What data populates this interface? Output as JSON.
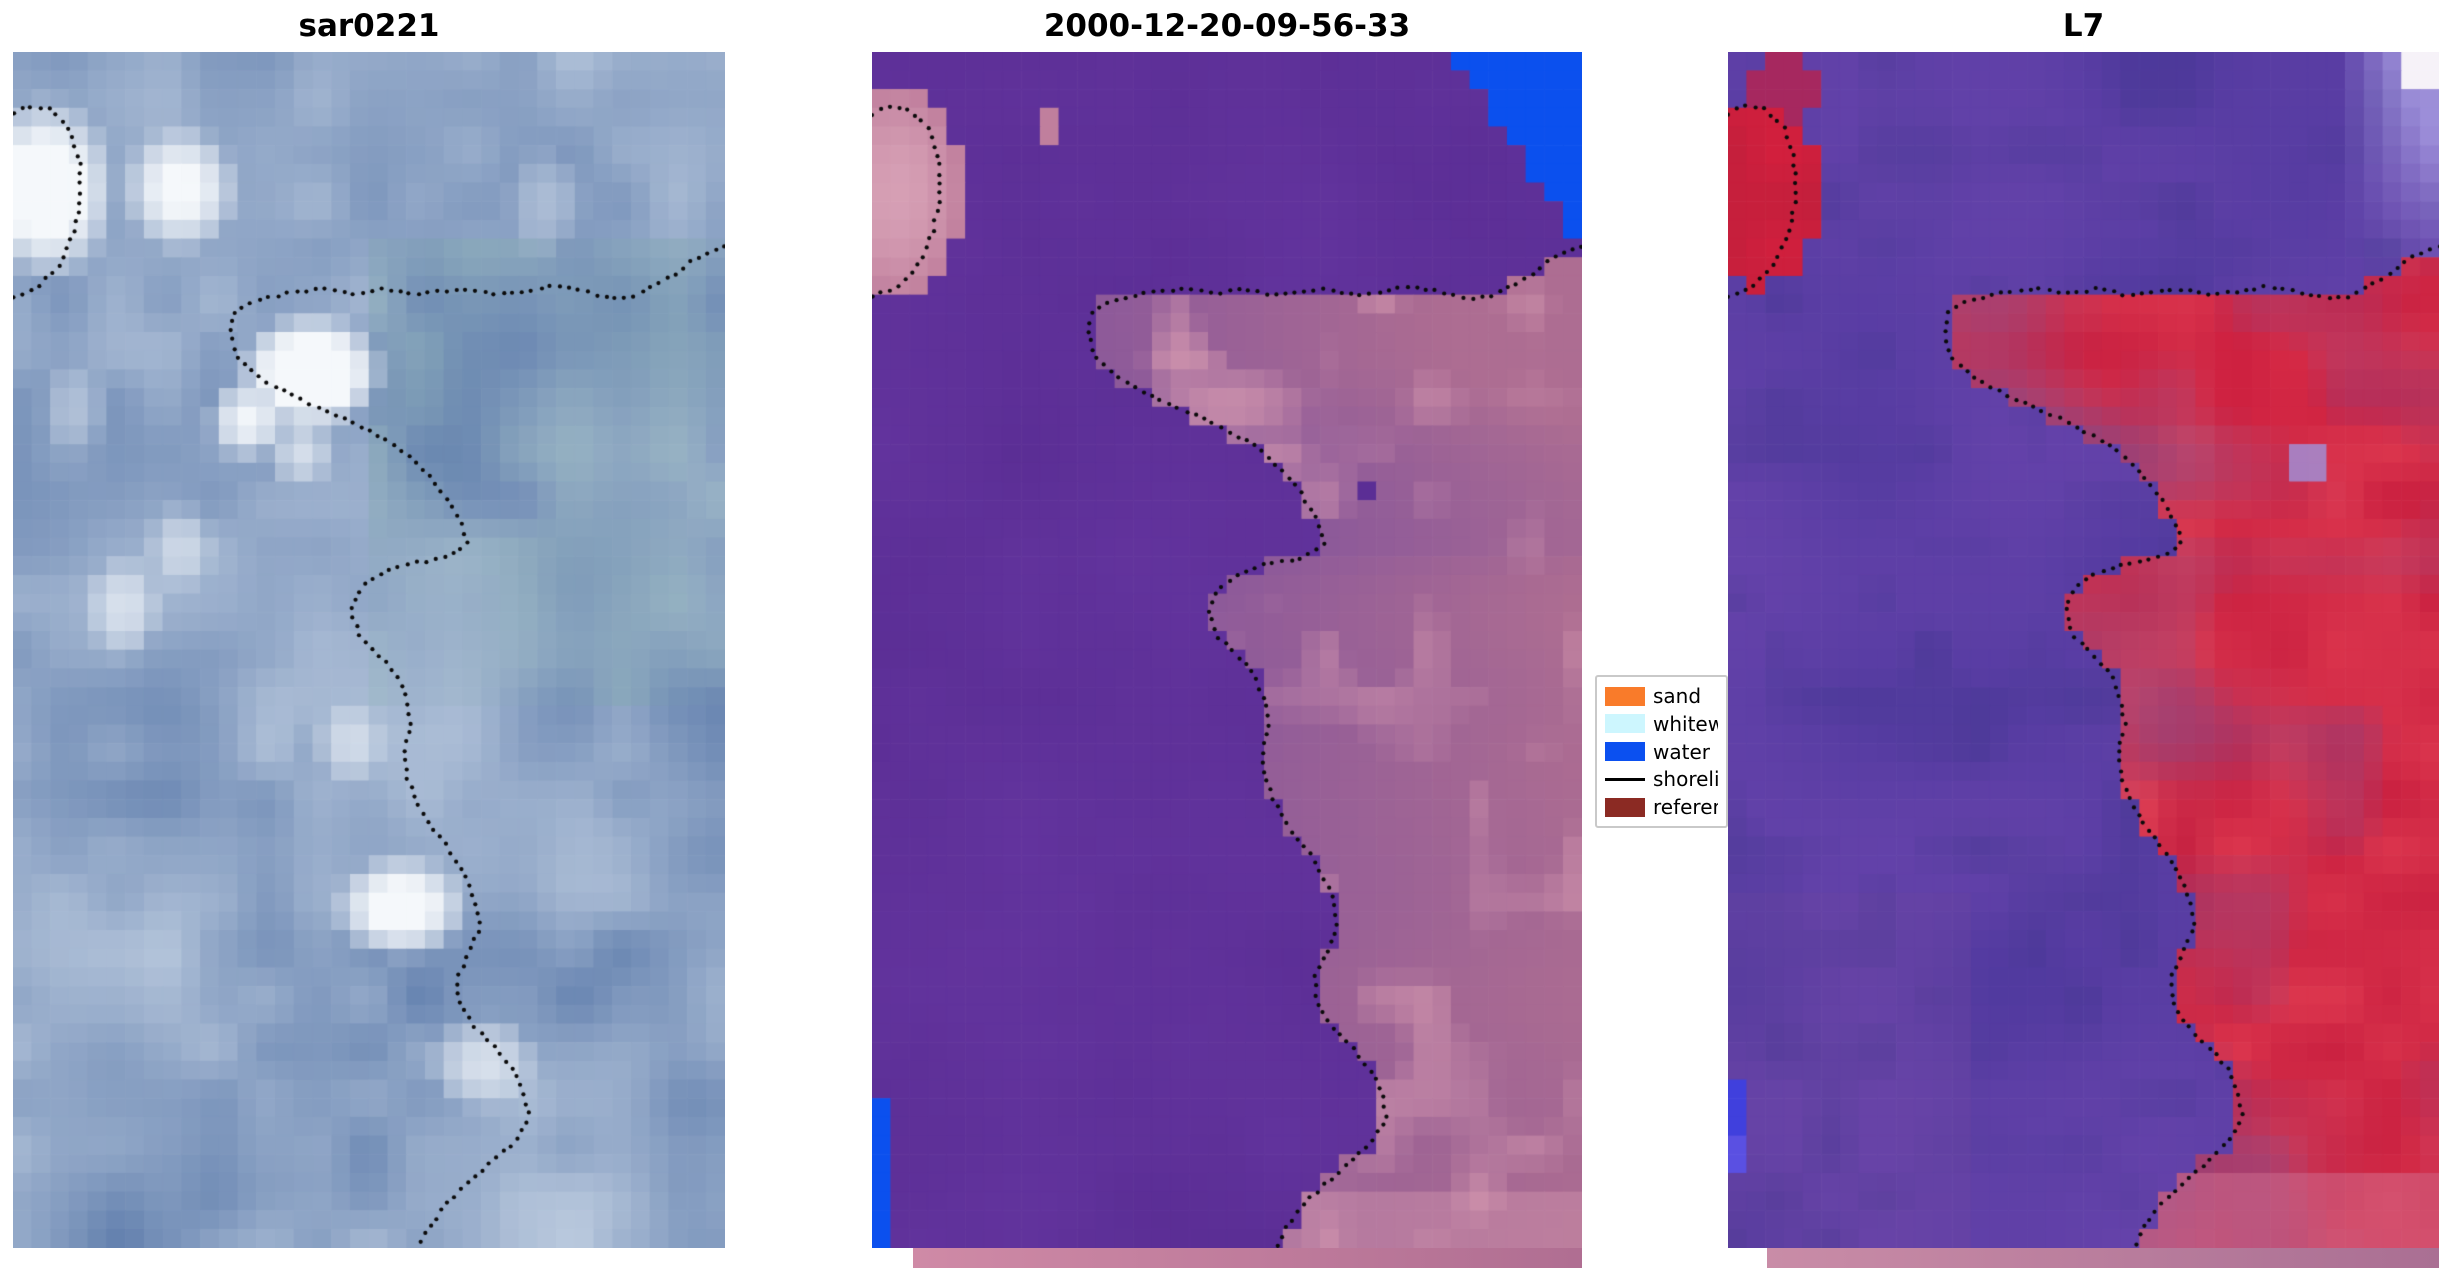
{
  "figure": {
    "panels": [
      {
        "title": "sar0221"
      },
      {
        "title": "2000-12-20-09-56-33"
      },
      {
        "title": "L7"
      }
    ],
    "legend": {
      "items": [
        {
          "label": "sand",
          "color": "#f97b2a",
          "type": "patch"
        },
        {
          "label": "whitew",
          "color": "#cdf6fe",
          "type": "patch"
        },
        {
          "label": "water",
          "color": "#0b50f0",
          "type": "patch"
        },
        {
          "label": "shoreli",
          "color": "#000000",
          "type": "line"
        },
        {
          "label": "referen",
          "color": "#8b2a23",
          "type": "patch"
        }
      ]
    }
  },
  "chart_data": {
    "type": "heatmap",
    "description": "Three-panel coastal remote-sensing comparison: a SAR backscatter image (sar0221), a classified scene dated 2000-12-20-09-56-33 (purple water / pink land with blue open-water patches), and a Landsat-7 (L7) false-color image. A dotted black shoreline contour is overlaid on all three panels; a truncated legend lists sand, whitewater, water, shoreline and reference classes.",
    "panel_titles": [
      "sar0221",
      "2000-12-20-09-56-33",
      "L7"
    ],
    "legend_entries": [
      "sand",
      "whitew",
      "water",
      "shoreli",
      "referen"
    ],
    "shoreline_split": 19,
    "shoreline_main": [
      [
        1.0,
        0.162
      ],
      [
        0.96,
        0.172
      ],
      [
        0.93,
        0.186
      ],
      [
        0.9,
        0.196
      ],
      [
        0.87,
        0.205
      ],
      [
        0.84,
        0.206
      ],
      [
        0.8,
        0.2
      ],
      [
        0.76,
        0.196
      ],
      [
        0.72,
        0.2
      ],
      [
        0.68,
        0.203
      ],
      [
        0.64,
        0.198
      ],
      [
        0.6,
        0.2
      ],
      [
        0.56,
        0.203
      ],
      [
        0.52,
        0.198
      ],
      [
        0.48,
        0.202
      ],
      [
        0.44,
        0.198
      ],
      [
        0.4,
        0.2
      ],
      [
        0.36,
        0.205
      ],
      [
        0.33,
        0.21
      ],
      [
        0.31,
        0.218
      ],
      [
        0.305,
        0.235
      ],
      [
        0.315,
        0.255
      ],
      [
        0.345,
        0.272
      ],
      [
        0.385,
        0.285
      ],
      [
        0.425,
        0.296
      ],
      [
        0.465,
        0.306
      ],
      [
        0.505,
        0.318
      ],
      [
        0.545,
        0.332
      ],
      [
        0.578,
        0.35
      ],
      [
        0.605,
        0.37
      ],
      [
        0.628,
        0.392
      ],
      [
        0.638,
        0.412
      ],
      [
        0.6,
        0.424
      ],
      [
        0.555,
        0.428
      ],
      [
        0.515,
        0.436
      ],
      [
        0.487,
        0.449
      ],
      [
        0.474,
        0.468
      ],
      [
        0.487,
        0.488
      ],
      [
        0.515,
        0.505
      ],
      [
        0.54,
        0.522
      ],
      [
        0.553,
        0.542
      ],
      [
        0.558,
        0.563
      ],
      [
        0.55,
        0.585
      ],
      [
        0.553,
        0.607
      ],
      [
        0.568,
        0.628
      ],
      [
        0.588,
        0.648
      ],
      [
        0.612,
        0.667
      ],
      [
        0.635,
        0.688
      ],
      [
        0.65,
        0.71
      ],
      [
        0.655,
        0.732
      ],
      [
        0.64,
        0.754
      ],
      [
        0.623,
        0.775
      ],
      [
        0.628,
        0.797
      ],
      [
        0.65,
        0.816
      ],
      [
        0.678,
        0.833
      ],
      [
        0.703,
        0.851
      ],
      [
        0.718,
        0.871
      ],
      [
        0.725,
        0.891
      ],
      [
        0.705,
        0.911
      ],
      [
        0.673,
        0.928
      ],
      [
        0.64,
        0.945
      ],
      [
        0.61,
        0.963
      ],
      [
        0.585,
        0.982
      ],
      [
        0.57,
        1.0
      ]
    ],
    "shoreline_blob": [
      [
        0.0,
        0.205
      ],
      [
        0.035,
        0.196
      ],
      [
        0.065,
        0.178
      ],
      [
        0.085,
        0.152
      ],
      [
        0.095,
        0.122
      ],
      [
        0.093,
        0.09
      ],
      [
        0.078,
        0.062
      ],
      [
        0.05,
        0.047
      ],
      [
        0.018,
        0.045
      ],
      [
        0.0,
        0.052
      ]
    ],
    "sar_blobs": [
      [
        0.045,
        0.115,
        0.105,
        0.08,
        1.15
      ],
      [
        0.235,
        0.115,
        0.085,
        0.055,
        0.95
      ],
      [
        0.42,
        0.268,
        0.105,
        0.05,
        1.3
      ],
      [
        0.33,
        0.308,
        0.06,
        0.036,
        0.85
      ],
      [
        0.405,
        0.335,
        0.05,
        0.03,
        0.6
      ],
      [
        0.155,
        0.465,
        0.055,
        0.045,
        0.55
      ],
      [
        0.235,
        0.415,
        0.05,
        0.038,
        0.5
      ],
      [
        0.545,
        0.715,
        0.1,
        0.045,
        1.05
      ],
      [
        0.66,
        0.845,
        0.08,
        0.042,
        0.65
      ],
      [
        0.47,
        0.578,
        0.052,
        0.036,
        0.5
      ],
      [
        0.745,
        0.125,
        0.055,
        0.048,
        0.28
      ],
      [
        0.085,
        0.298,
        0.05,
        0.04,
        0.35
      ]
    ],
    "palette": {
      "sar": {
        "dark": "#4e6fa3",
        "light": "#c9d6e6",
        "green": "#79ab9f",
        "white": "#f5f8fb"
      },
      "classified": {
        "water_purple": "#5b2e95",
        "water_purple2": "#64359f",
        "water_blue": "#0b50ee",
        "patch": "#c07f9d",
        "patch_light": "#dca8bb",
        "land_inner": "#8d5a9a",
        "land_outer": "#ad6d92",
        "land_pink": "#b8738e",
        "land_light": "#d094ad"
      },
      "l7": {
        "water1": "#513a9f",
        "water2": "#6643ab",
        "water3": "#42378f",
        "water_mag": "#71489c",
        "red1": "#c62242",
        "red2": "#df4055",
        "red_hot": "#d51f3e",
        "red_dark": "#a81f3a",
        "land_purple": "#8a4a88",
        "lavender": "#a093dc",
        "white": "#f6f2f8",
        "blue": "#4040dd",
        "blue2": "#5a50e2",
        "pink_bottom": "#d06e90"
      }
    },
    "strips": {
      "classified": [
        "#cf8aa6",
        "#b06e92"
      ],
      "l7": [
        "#c98ca7",
        "#aa6f93"
      ]
    },
    "shoreline_dot_color": "#0a0a0a"
  }
}
